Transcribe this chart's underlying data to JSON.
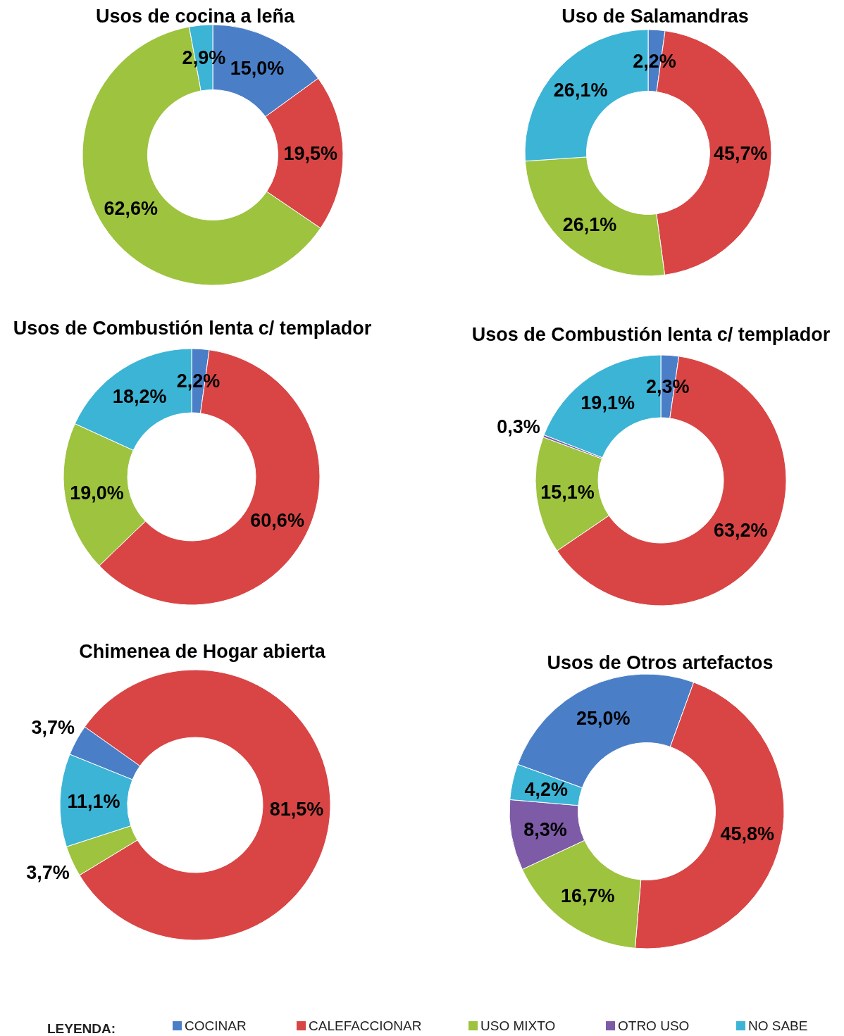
{
  "chart_data": [
    {
      "type": "donut",
      "title": "Usos de cocina a leña",
      "categories": [
        null,
        null,
        null,
        null
      ],
      "values": [
        15.0,
        19.5,
        62.6,
        2.9
      ],
      "colors": [
        "#4a7fc8",
        "#d94545",
        "#9dc33f",
        "#3cb4d6"
      ],
      "value_labels": [
        "15,0%",
        "19,5%",
        "62,6%",
        "2,9%"
      ]
    },
    {
      "type": "donut",
      "title": "Uso de Salamandras",
      "categories": [
        null,
        null,
        null,
        null
      ],
      "values": [
        2.2,
        45.7,
        26.1,
        26.1
      ],
      "colors": [
        "#4a7fc8",
        "#d94545",
        "#9dc33f",
        "#3cb4d6"
      ],
      "value_labels": [
        "2,2%",
        "45,7%",
        "26,1%",
        "26,1%"
      ]
    },
    {
      "type": "donut",
      "title": "Usos de Combustión lenta c/ templador",
      "categories": [
        null,
        null,
        null,
        null
      ],
      "values": [
        2.2,
        60.6,
        19.0,
        18.2
      ],
      "colors": [
        "#4a7fc8",
        "#d94545",
        "#9dc33f",
        "#3cb4d6"
      ],
      "value_labels": [
        "2,2%",
        "60,6%",
        "19,0%",
        "18,2%"
      ]
    },
    {
      "type": "donut",
      "title": "Usos de Combustión lenta c/ templador",
      "categories": [
        null,
        null,
        null,
        null,
        null
      ],
      "values": [
        2.3,
        63.2,
        15.1,
        0.3,
        19.1
      ],
      "colors": [
        "#4a7fc8",
        "#d94545",
        "#9dc33f",
        "#7d5ba6",
        "#3cb4d6"
      ],
      "value_labels": [
        "2,3%",
        "63,2%",
        "15,1%",
        "0,3%",
        "19,1%"
      ]
    },
    {
      "type": "donut",
      "title": "Chimenea de Hogar abierta",
      "categories": [
        null,
        null,
        null,
        null
      ],
      "values": [
        3.7,
        81.5,
        3.7,
        11.1
      ],
      "colors": [
        "#4a7fc8",
        "#d94545",
        "#9dc33f",
        "#3cb4d6"
      ],
      "value_labels": [
        "3,7%",
        "81,5%",
        "3,7%",
        "11,1%"
      ]
    },
    {
      "type": "donut",
      "title": "Usos de Otros artefactos",
      "categories": [
        "COCINAR",
        "CALEFACCIONAR",
        "USO MIXTO",
        "OTRO USO",
        "NO SABE"
      ],
      "values": [
        25.0,
        45.8,
        16.7,
        8.3,
        4.2
      ],
      "colors": [
        "#4a7fc8",
        "#d94545",
        "#9dc33f",
        "#7d5ba6",
        "#3cb4d6"
      ],
      "value_labels": [
        "25,0%",
        "45,8%",
        "16,7%",
        "8,3%",
        "4,2%"
      ],
      "legend": "bottom",
      "legend_title": "LEYENDA:"
    }
  ]
}
